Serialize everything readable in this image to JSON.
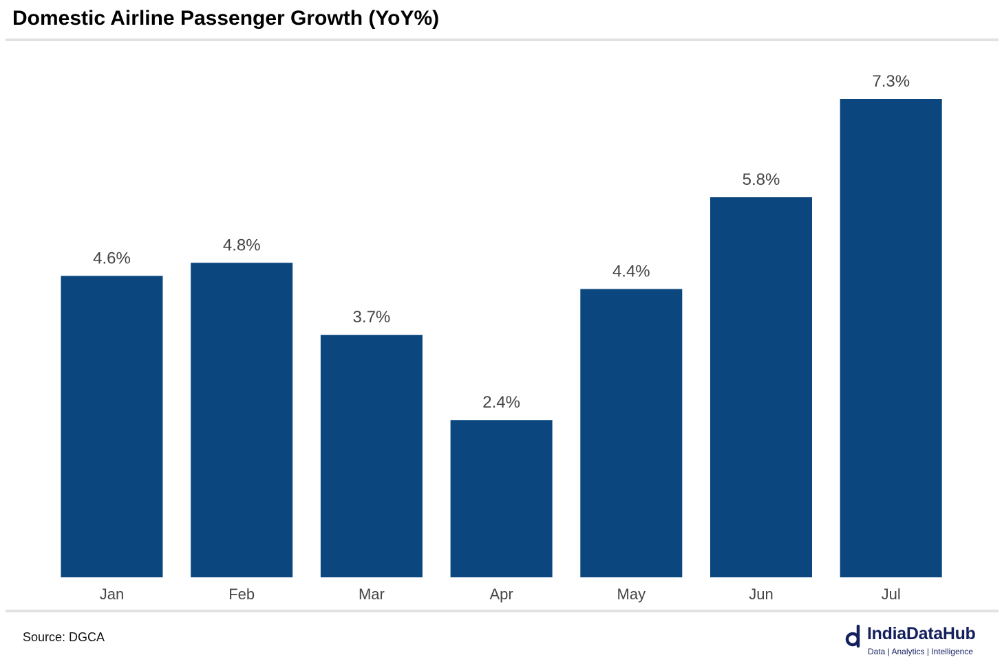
{
  "title": "Domestic Airline Passenger Growth (YoY%)",
  "source": "Source: DGCA",
  "logo": {
    "name": "IndiaDataHub",
    "tagline": "Data | Analytics | Intelligence",
    "icon": "logo-d-icon"
  },
  "colors": {
    "bar": "#0b477e",
    "label": "#444444"
  },
  "chart_data": {
    "type": "bar",
    "categories": [
      "Jan",
      "Feb",
      "Mar",
      "Apr",
      "May",
      "Jun",
      "Jul"
    ],
    "values": [
      4.6,
      4.8,
      3.7,
      2.4,
      4.4,
      5.8,
      7.3
    ],
    "data_labels": [
      "4.6%",
      "4.8%",
      "3.7%",
      "2.4%",
      "4.4%",
      "5.8%",
      "7.3%"
    ],
    "ylim": [
      0,
      7.3
    ],
    "grid": false,
    "legend": "none"
  }
}
